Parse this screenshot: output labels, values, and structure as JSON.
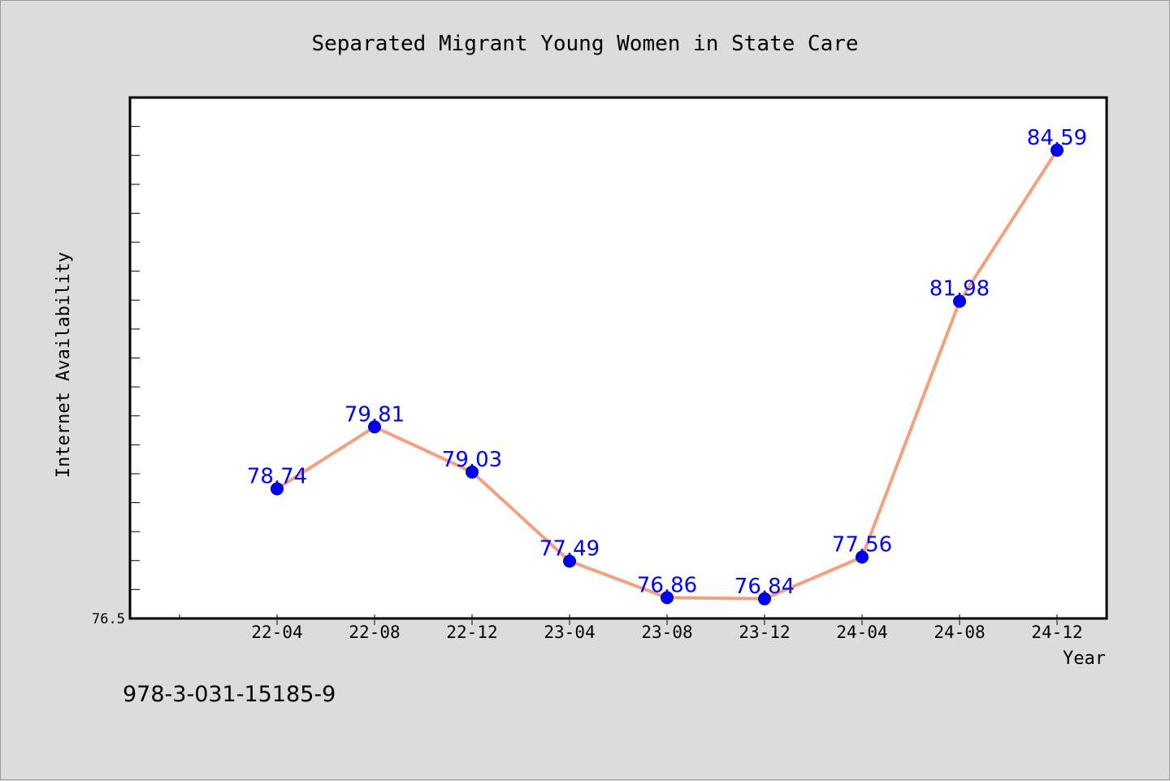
{
  "chart_data": {
    "type": "line",
    "title": "Separated Migrant Young Women in State Care",
    "xlabel": "Year",
    "ylabel": "Internet Availability",
    "categories": [
      "22-04",
      "22-08",
      "22-12",
      "23-04",
      "23-08",
      "23-12",
      "24-04",
      "24-08",
      "24-12"
    ],
    "values": [
      78.74,
      79.81,
      79.03,
      77.49,
      76.86,
      76.84,
      77.56,
      81.98,
      84.59
    ],
    "data_labels": [
      "78.74",
      "79.81",
      "79.03",
      "77.49",
      "76.86",
      "76.84",
      "77.56",
      "81.98",
      "84.59"
    ],
    "ylim": [
      76.5,
      85.5
    ],
    "y_tick_label": "76.5",
    "grid": false,
    "line_color": "#f4a07e",
    "marker_color": "#0000ff",
    "data_label_color": "#0000ff",
    "background_color": "#dcdcdc",
    "plot_background_color": "#ffffff"
  },
  "footer": {
    "isbn": "978-3-031-15185-9"
  }
}
